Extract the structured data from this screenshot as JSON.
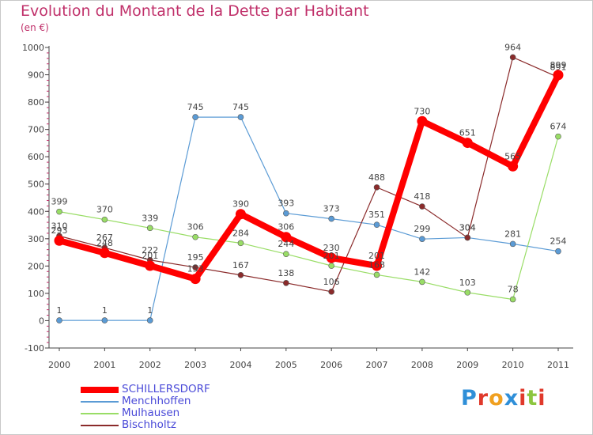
{
  "title": "Evolution du Montant de la Dette par Habitant",
  "unit": "(en €)",
  "logo": {
    "text": "Proxiti",
    "letters": [
      "P",
      "r",
      "o",
      "x",
      "i",
      "t",
      "i"
    ],
    "colors": [
      "#2f8fd8",
      "#e0392b",
      "#f0a020",
      "#2f8fd8",
      "#e0392b",
      "#8cc63f",
      "#e0392b"
    ]
  },
  "chart_data": {
    "type": "line",
    "title": "Evolution du Montant de la Dette par Habitant",
    "ylabel": "(en €)",
    "xlabel": "",
    "x": [
      "2000",
      "2001",
      "2002",
      "2003",
      "2004",
      "2005",
      "2006",
      "2007",
      "2008",
      "2009",
      "2010",
      "2011"
    ],
    "ylim": [
      -100,
      1000
    ],
    "yticks": [
      "-100",
      "0",
      "100",
      "200",
      "300",
      "400",
      "500",
      "600",
      "700",
      "800",
      "900",
      "1000"
    ],
    "grid": false,
    "legend_position": "bottom-left",
    "series": [
      {
        "name": "SCHILLERSDORF",
        "color": "#ff0000",
        "values": [
          293,
          248,
          201,
          153,
          390,
          306,
          230,
          201,
          730,
          651,
          565,
          899
        ],
        "labels": [
          "293",
          "248",
          "201",
          "153",
          "390",
          "306",
          "230",
          "201",
          "730",
          "651",
          "565",
          "899"
        ]
      },
      {
        "name": "Menchhoffen",
        "color": "#5b9bd5",
        "values": [
          1,
          1,
          1,
          745,
          745,
          393,
          373,
          351,
          299,
          304,
          281,
          254
        ],
        "labels": [
          "1",
          "1",
          "1",
          "745",
          "745",
          "393",
          "373",
          "351",
          "299",
          "304",
          "281",
          "254"
        ]
      },
      {
        "name": "Mulhausen",
        "color": "#99dd66",
        "values": [
          399,
          370,
          339,
          306,
          284,
          244,
          201,
          168,
          142,
          103,
          78,
          674
        ],
        "labels": [
          "399",
          "370",
          "339",
          "306",
          "284",
          "244",
          "201",
          "168",
          "142",
          "103",
          "78",
          "674"
        ]
      },
      {
        "name": "Bischholtz",
        "color": "#8b2b2b",
        "values": [
          310,
          267,
          222,
          195,
          167,
          138,
          106,
          488,
          418,
          304,
          964,
          891
        ],
        "labels": [
          "310",
          "267",
          "222",
          "195",
          "167",
          "138",
          "106",
          "488",
          "418",
          "304",
          "964",
          "891"
        ]
      }
    ]
  }
}
